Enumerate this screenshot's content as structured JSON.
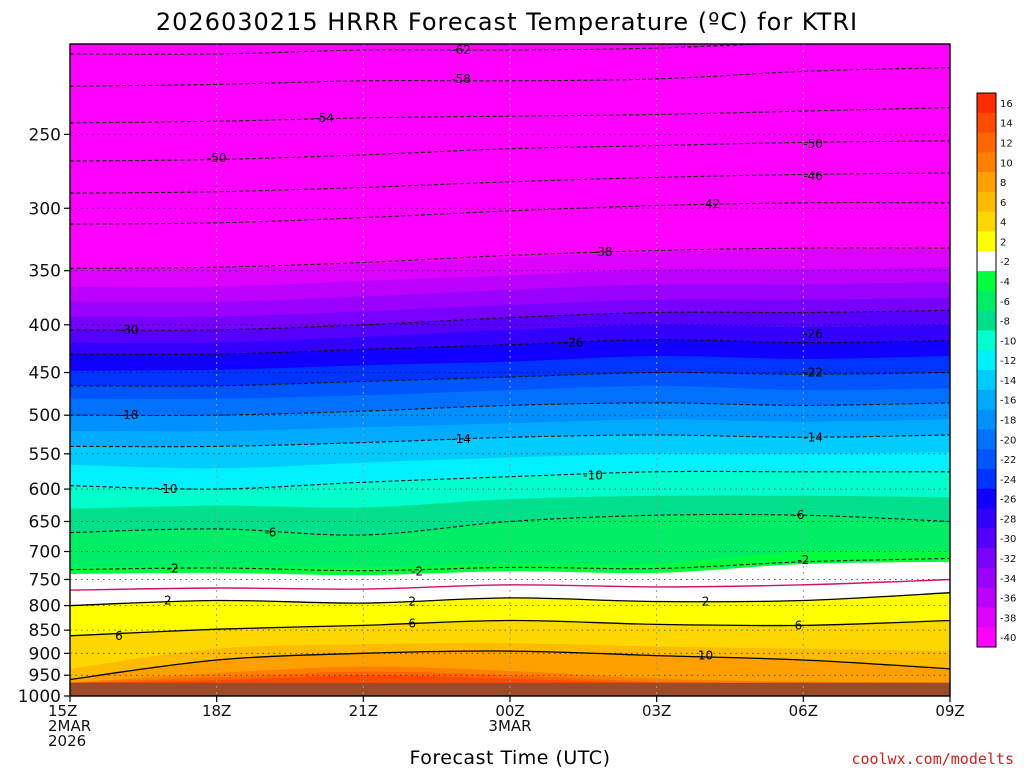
{
  "chart_data": {
    "type": "heatmap",
    "title": "2026030215 HRRR Forecast Temperature (ºC) for KTRI",
    "xlabel": "Forecast Time (UTC)",
    "ylabel": "",
    "credit": "coolwx.com/modelts",
    "y_scale": "log-pressure",
    "ylim": [
      1000,
      200
    ],
    "y_ticks": [
      250,
      300,
      350,
      400,
      450,
      500,
      550,
      600,
      650,
      700,
      750,
      800,
      850,
      900,
      950,
      1000
    ],
    "x_ticks": [
      {
        "hour": 0,
        "lines": [
          "15Z",
          "2MAR",
          "2026"
        ]
      },
      {
        "hour": 3,
        "lines": [
          "18Z"
        ]
      },
      {
        "hour": 6,
        "lines": [
          "21Z"
        ]
      },
      {
        "hour": 9,
        "lines": [
          "00Z",
          "3MAR"
        ]
      },
      {
        "hour": 12,
        "lines": [
          "03Z"
        ]
      },
      {
        "hour": 15,
        "lines": [
          "06Z"
        ]
      },
      {
        "hour": 18,
        "lines": [
          "09Z"
        ]
      }
    ],
    "grid": true,
    "ground_pressure": 968,
    "colorbar": {
      "labels": [
        "16",
        "14",
        "12",
        "10",
        "8",
        "6",
        "4",
        "2",
        "-2",
        "-4",
        "-6",
        "-8",
        "-10",
        "-12",
        "-14",
        "-16",
        "-18",
        "-20",
        "-22",
        "-24",
        "-26",
        "-28",
        "-30",
        "-32",
        "-34",
        "-36",
        "-38",
        "-40"
      ],
      "colors": [
        "#ff2a00",
        "#ff4a00",
        "#ff6600",
        "#ff8000",
        "#ffa000",
        "#ffbb00",
        "#ffd700",
        "#ffff00",
        "#ffffff",
        "#00ff3c",
        "#00ee66",
        "#00e08c",
        "#00ffcc",
        "#00f0ff",
        "#00ccff",
        "#00aaff",
        "#0090ff",
        "#0070ff",
        "#0055ff",
        "#0033ff",
        "#1100ff",
        "#3300ff",
        "#5500ff",
        "#7700ff",
        "#9900ff",
        "#bb00ff",
        "#dd00ff",
        "#ff00ff"
      ]
    },
    "band_colors": [
      {
        "t": 16,
        "color": "#ff4a00"
      },
      {
        "t": 14,
        "color": "#ff6600"
      },
      {
        "t": 12,
        "color": "#ff8000"
      },
      {
        "t": 10,
        "color": "#ffa000"
      },
      {
        "t": 8,
        "color": "#ffbb00"
      },
      {
        "t": 6,
        "color": "#ffd700"
      },
      {
        "t": 4,
        "color": "#ffff00"
      },
      {
        "t": 2,
        "color": "#ffff00"
      },
      {
        "t": -2,
        "color": "#ffffff"
      },
      {
        "t": -4,
        "color": "#00ff3c"
      },
      {
        "t": -6,
        "color": "#00ee66"
      },
      {
        "t": -8,
        "color": "#00e08c"
      },
      {
        "t": -10,
        "color": "#00ffcc"
      },
      {
        "t": -12,
        "color": "#00f0ff"
      },
      {
        "t": -14,
        "color": "#00ccff"
      },
      {
        "t": -16,
        "color": "#00aaff"
      },
      {
        "t": -18,
        "color": "#0090ff"
      },
      {
        "t": -20,
        "color": "#0070ff"
      },
      {
        "t": -22,
        "color": "#0055ff"
      },
      {
        "t": -24,
        "color": "#0033ff"
      },
      {
        "t": -26,
        "color": "#1100ff"
      },
      {
        "t": -28,
        "color": "#3300ff"
      },
      {
        "t": -30,
        "color": "#5500ff"
      },
      {
        "t": -32,
        "color": "#7700ff"
      },
      {
        "t": -34,
        "color": "#9900ff"
      },
      {
        "t": -36,
        "color": "#bb00ff"
      },
      {
        "t": -38,
        "color": "#dd00ff"
      },
      {
        "t": -40,
        "color": "#ff00ff"
      }
    ],
    "profiles": {
      "hours": [
        0,
        3,
        6,
        9,
        12,
        15,
        18
      ],
      "levels": [
        {
          "t": 16,
          "p": [
            968,
            962,
            950,
            958,
            968,
            968,
            968
          ]
        },
        {
          "t": 14,
          "p": [
            968,
            955,
            942,
            950,
            965,
            968,
            968
          ]
        },
        {
          "t": 12,
          "p": [
            968,
            945,
            930,
            940,
            958,
            965,
            968
          ]
        },
        {
          "t": 10,
          "p": [
            960,
            915,
            900,
            895,
            905,
            915,
            935
          ]
        },
        {
          "t": 8,
          "p": [
            935,
            890,
            880,
            878,
            885,
            890,
            895
          ]
        },
        {
          "t": 6,
          "p": [
            862,
            848,
            840,
            830,
            838,
            840,
            830
          ]
        },
        {
          "t": 4,
          "p": [
            835,
            825,
            820,
            810,
            812,
            815,
            810
          ]
        },
        {
          "t": 2,
          "p": [
            800,
            790,
            795,
            785,
            792,
            790,
            775
          ]
        },
        {
          "t": -2,
          "p": [
            740,
            738,
            742,
            735,
            738,
            722,
            718
          ]
        },
        {
          "t": -4,
          "p": [
            728,
            726,
            728,
            722,
            722,
            700,
            700
          ]
        },
        {
          "t": -6,
          "p": [
            668,
            662,
            672,
            650,
            640,
            640,
            650
          ]
        },
        {
          "t": -8,
          "p": [
            630,
            625,
            628,
            615,
            610,
            610,
            612
          ]
        },
        {
          "t": -10,
          "p": [
            595,
            600,
            590,
            582,
            575,
            575,
            575
          ]
        },
        {
          "t": -12,
          "p": [
            565,
            570,
            562,
            555,
            550,
            550,
            548
          ]
        },
        {
          "t": -14,
          "p": [
            540,
            540,
            535,
            528,
            525,
            528,
            525
          ]
        },
        {
          "t": -16,
          "p": [
            520,
            520,
            515,
            510,
            505,
            508,
            505
          ]
        },
        {
          "t": -18,
          "p": [
            500,
            500,
            495,
            488,
            485,
            488,
            485
          ]
        },
        {
          "t": -20,
          "p": [
            480,
            480,
            476,
            470,
            465,
            470,
            468
          ]
        },
        {
          "t": -22,
          "p": [
            465,
            465,
            460,
            455,
            450,
            452,
            450
          ]
        },
        {
          "t": -24,
          "p": [
            448,
            447,
            442,
            438,
            432,
            435,
            432
          ]
        },
        {
          "t": -26,
          "p": [
            430,
            430,
            425,
            420,
            415,
            418,
            416
          ]
        },
        {
          "t": -28,
          "p": [
            418,
            418,
            412,
            405,
            400,
            402,
            400
          ]
        },
        {
          "t": -30,
          "p": [
            405,
            405,
            400,
            393,
            388,
            388,
            386
          ]
        },
        {
          "t": -32,
          "p": [
            392,
            392,
            387,
            381,
            376,
            376,
            374
          ]
        },
        {
          "t": -34,
          "p": [
            378,
            378,
            373,
            367,
            362,
            362,
            360
          ]
        },
        {
          "t": -36,
          "p": [
            364,
            364,
            359,
            354,
            349,
            349,
            347
          ]
        },
        {
          "t": -38,
          "p": [
            349,
            348,
            344,
            339,
            334,
            332,
            332
          ]
        },
        {
          "t": -40,
          "p": [
            334,
            333,
            329,
            324,
            319,
            317,
            317
          ]
        }
      ]
    },
    "isotherms": [
      {
        "label": "-62",
        "style": "dashed",
        "p": [
          205,
          205,
          203,
          203,
          202,
          199,
          196
        ],
        "label_at": [
          8.0,
          203
        ]
      },
      {
        "label": "-58",
        "style": "dashed",
        "p": [
          222,
          221,
          219,
          219,
          218,
          214,
          212
        ],
        "label_at": [
          8.0,
          218
        ]
      },
      {
        "label": "-54",
        "style": "dashed",
        "p": [
          243,
          242,
          240,
          239,
          238,
          236,
          234
        ],
        "label_at": [
          5.2,
          240
        ]
      },
      {
        "label": "-50",
        "style": "dashed",
        "p": [
          267,
          266,
          263,
          259,
          257,
          255,
          254
        ],
        "label_at": [
          3.0,
          265
        ]
      },
      {
        "label": "-50",
        "style": "dashed",
        "p": [
          267,
          266,
          263,
          259,
          257,
          255,
          254
        ],
        "label_at": [
          15.2,
          256
        ]
      },
      {
        "label": "-46",
        "style": "dashed",
        "p": [
          289,
          288,
          285,
          281,
          278,
          276,
          275
        ],
        "label_at": [
          15.2,
          277
        ]
      },
      {
        "label": "-42",
        "style": "dashed",
        "p": [
          312,
          311,
          307,
          302,
          298,
          296,
          296
        ],
        "label_at": [
          13.1,
          297
        ]
      },
      {
        "label": "-38",
        "style": "dashed",
        "p": [
          348,
          347,
          343,
          337,
          333,
          331,
          331
        ],
        "label_at": [
          10.9,
          334
        ]
      },
      {
        "label": "-30",
        "style": "dashed",
        "p": [
          405,
          405,
          400,
          393,
          388,
          388,
          386
        ],
        "label_at": [
          1.2,
          405
        ]
      },
      {
        "label": "-26",
        "style": "dashed",
        "p": [
          430,
          430,
          425,
          420,
          415,
          418,
          416
        ],
        "label_at": [
          10.3,
          418
        ]
      },
      {
        "label": "-26",
        "style": "dashed",
        "p": [
          430,
          430,
          425,
          420,
          415,
          418,
          416
        ],
        "label_at": [
          15.2,
          409
        ]
      },
      {
        "label": "-22",
        "style": "dashed",
        "p": [
          465,
          465,
          460,
          455,
          450,
          452,
          450
        ],
        "label_at": [
          15.2,
          450
        ]
      },
      {
        "label": "-18",
        "style": "dashed",
        "p": [
          500,
          500,
          495,
          488,
          485,
          488,
          485
        ],
        "label_at": [
          1.2,
          500
        ]
      },
      {
        "label": "-14",
        "style": "dashed",
        "p": [
          540,
          540,
          535,
          528,
          525,
          528,
          525
        ],
        "label_at": [
          8.0,
          530
        ]
      },
      {
        "label": "-14",
        "style": "dashed",
        "p": [
          540,
          540,
          535,
          528,
          525,
          528,
          525
        ],
        "label_at": [
          15.2,
          528
        ]
      },
      {
        "label": "-10",
        "style": "dashed",
        "p": [
          595,
          600,
          590,
          582,
          575,
          575,
          575
        ],
        "label_at": [
          2.0,
          600
        ]
      },
      {
        "label": "-10",
        "style": "dashed",
        "p": [
          595,
          600,
          590,
          582,
          575,
          575,
          575
        ],
        "label_at": [
          10.7,
          580
        ]
      },
      {
        "label": "-6",
        "style": "dashed",
        "p": [
          668,
          662,
          672,
          650,
          640,
          640,
          650
        ],
        "label_at": [
          4.1,
          668
        ]
      },
      {
        "label": "-6",
        "style": "dashed",
        "p": [
          668,
          662,
          672,
          650,
          640,
          640,
          650
        ],
        "label_at": [
          14.9,
          640
        ]
      },
      {
        "label": "-2",
        "style": "dashed",
        "p": [
          732,
          729,
          734,
          728,
          730,
          718,
          712
        ],
        "label_at": [
          2.1,
          730
        ]
      },
      {
        "label": "-2",
        "style": "dashed",
        "p": [
          732,
          729,
          734,
          728,
          730,
          718,
          712
        ],
        "label_at": [
          7.1,
          735
        ]
      },
      {
        "label": "-2",
        "style": "dashed",
        "p": [
          732,
          729,
          734,
          728,
          730,
          718,
          712
        ],
        "label_at": [
          15.0,
          715
        ]
      },
      {
        "label": "0",
        "style": "magenta",
        "p": [
          770,
          766,
          768,
          760,
          764,
          760,
          750
        ],
        "label_at": null
      },
      {
        "label": "2",
        "style": "solid",
        "p": [
          800,
          790,
          795,
          785,
          792,
          790,
          775
        ],
        "label_at": [
          2.0,
          790
        ]
      },
      {
        "label": "2",
        "style": "solid",
        "p": [
          800,
          790,
          795,
          785,
          792,
          790,
          775
        ],
        "label_at": [
          7.0,
          792
        ]
      },
      {
        "label": "2",
        "style": "solid",
        "p": [
          800,
          790,
          795,
          785,
          792,
          790,
          775
        ],
        "label_at": [
          13.0,
          792
        ]
      },
      {
        "label": "6",
        "style": "solid",
        "p": [
          862,
          848,
          840,
          830,
          838,
          840,
          830
        ],
        "label_at": [
          1.0,
          862
        ]
      },
      {
        "label": "6",
        "style": "solid",
        "p": [
          862,
          848,
          840,
          830,
          838,
          840,
          830
        ],
        "label_at": [
          7.0,
          836
        ]
      },
      {
        "label": "6",
        "style": "solid",
        "p": [
          862,
          848,
          840,
          830,
          838,
          840,
          830
        ],
        "label_at": [
          14.9,
          840
        ]
      },
      {
        "label": "10",
        "style": "solid",
        "p": [
          960,
          915,
          900,
          895,
          905,
          915,
          935
        ],
        "label_at": [
          13.0,
          905
        ]
      }
    ]
  }
}
